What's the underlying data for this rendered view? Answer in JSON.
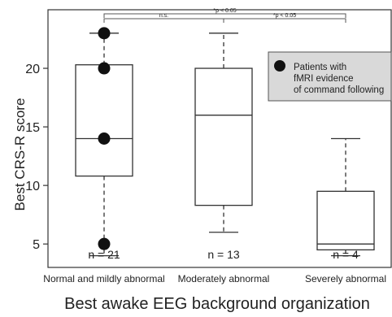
{
  "chart_data": {
    "type": "box",
    "ylabel": "Best CRS-R score",
    "xlabel": "Best awake EEG background organization",
    "ylim": [
      3,
      25
    ],
    "yticks": [
      5,
      10,
      15,
      20
    ],
    "groups": [
      {
        "label": "Normal and mildly abnormal",
        "n_label": "n = 21",
        "min": 4,
        "q1": 10.8,
        "median": 14,
        "q3": 20.3,
        "max": 23
      },
      {
        "label": "Moderately abnormal",
        "n_label": "n = 13",
        "min": 6,
        "q1": 8.3,
        "median": 16,
        "q3": 20,
        "max": 23
      },
      {
        "label": "Severely abnormal",
        "n_label": "n = 4",
        "min": 4,
        "q1": 4.5,
        "median": 5,
        "q3": 9.5,
        "max": 14
      }
    ],
    "highlight_points": [
      {
        "group": 0,
        "y": 23
      },
      {
        "group": 0,
        "y": 20
      },
      {
        "group": 0,
        "y": 14
      },
      {
        "group": 0,
        "y": 5
      }
    ],
    "legend": {
      "label_lines": [
        "Patients with",
        "fMRI evidence",
        "of command following"
      ],
      "position": "top-right",
      "background": "#d9d9d9"
    },
    "significance": [
      {
        "from": 0,
        "to": 1,
        "label": "n.s."
      },
      {
        "from": 0,
        "to": 2,
        "label": "*p < 0.05"
      },
      {
        "from": 1,
        "to": 2,
        "label": "*p < 0.05"
      }
    ]
  }
}
